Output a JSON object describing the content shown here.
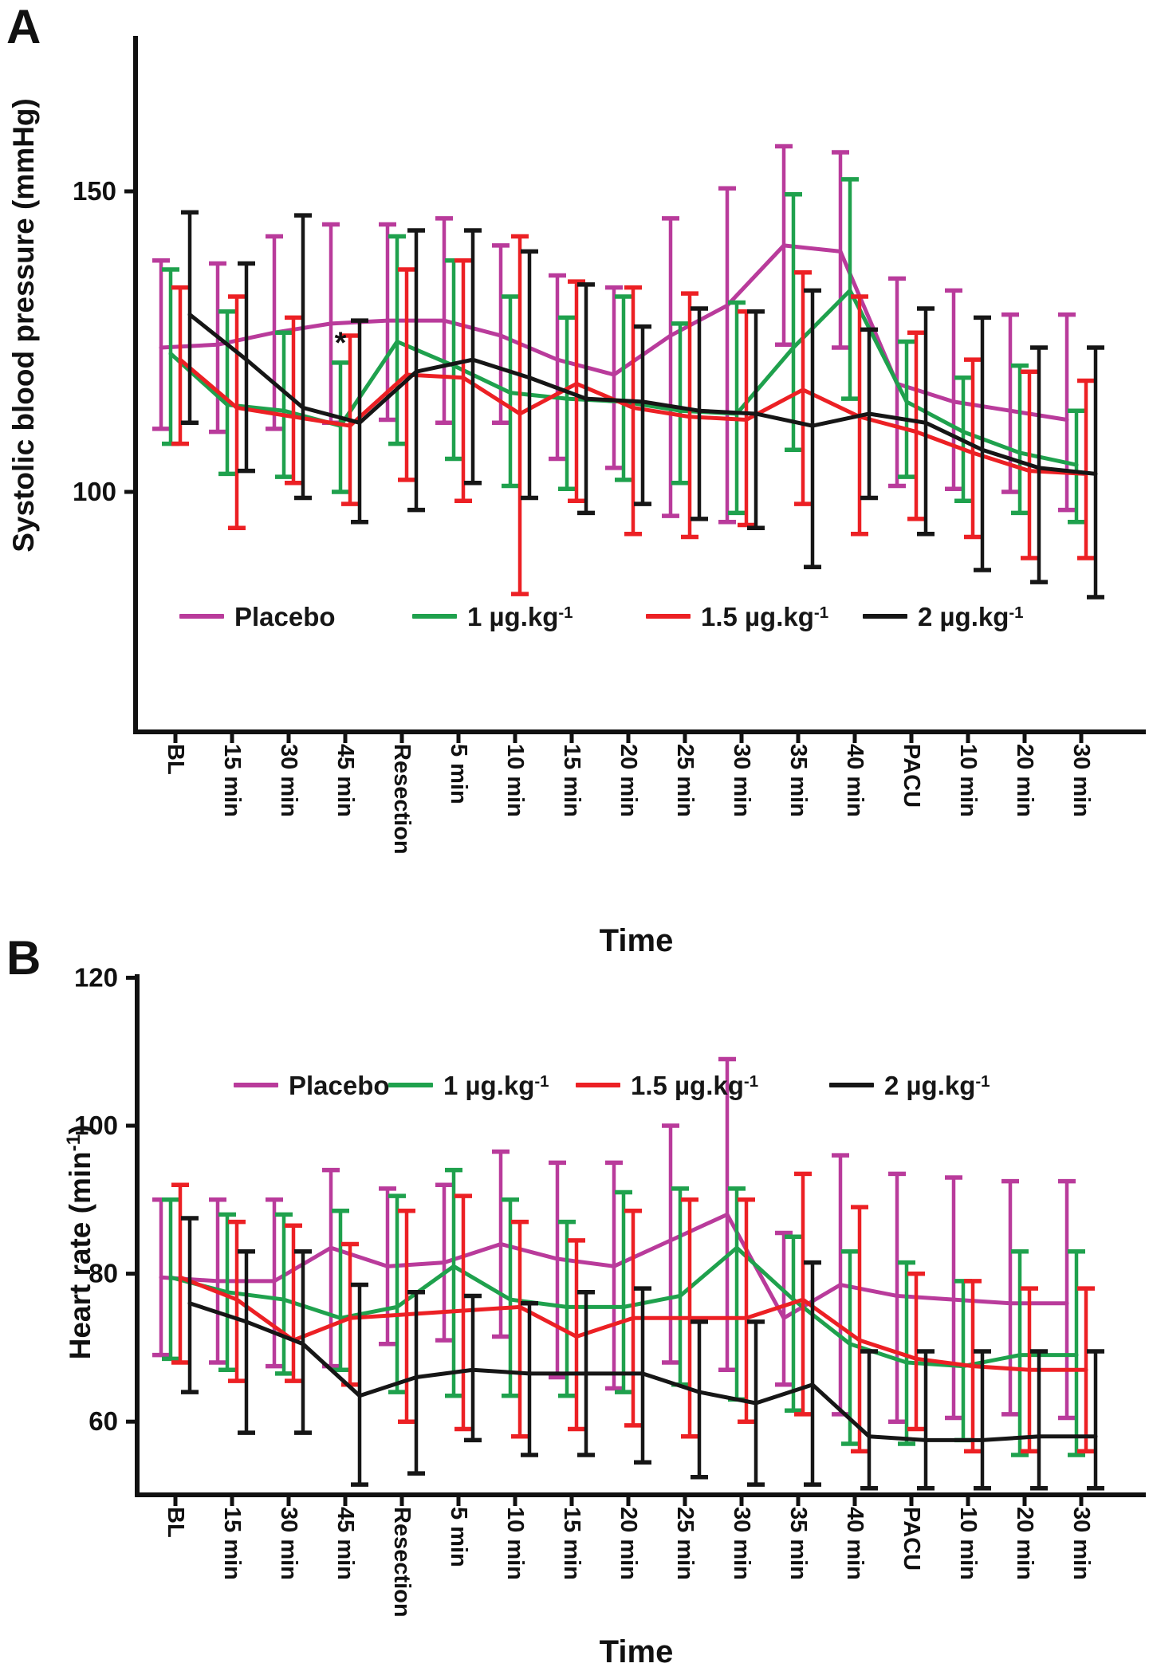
{
  "figure": {
    "panel_a_letter": "A",
    "panel_b_letter": "B",
    "background": "#ffffff",
    "text_color": "#111111",
    "axis_color": "#111111"
  },
  "legend_a": {
    "items": [
      {
        "base": "Placebo",
        "sup": "",
        "color": "#B93B9B"
      },
      {
        "base": "1 µg.kg",
        "sup": "-1",
        "color": "#1FA14D"
      },
      {
        "base": "1.5 µg.kg",
        "sup": "-1",
        "color": "#EC2024"
      },
      {
        "base": "2 µg.kg",
        "sup": "-1",
        "color": "#161616"
      }
    ]
  },
  "legend_b": {
    "items": [
      {
        "base": "Placebo",
        "sup": "",
        "color": "#B93B9B"
      },
      {
        "base": "1 µg.kg",
        "sup": "-1",
        "color": "#1FA14D"
      },
      {
        "base": "1.5 µg.kg",
        "sup": "-1",
        "color": "#EC2024"
      },
      {
        "base": "2 µg.kg",
        "sup": "-1",
        "color": "#161616"
      }
    ]
  },
  "chart_data": [
    {
      "id": "A",
      "type": "line",
      "ylabel": "Systolic  blood pressure (mmHg)",
      "xlabel": "Time",
      "categories": [
        "BL",
        "15 min",
        "30 min",
        "45 min",
        "Resection",
        "5 min",
        "10 min",
        "15 min",
        "20 min",
        "25 min",
        "30 min",
        "35 min",
        "40 min",
        "PACU",
        "10 min",
        "20 min",
        "30 min"
      ],
      "yticks": [
        150,
        100
      ],
      "ylim": [
        75,
        178
      ],
      "grid": false,
      "legend_position": "inside-bottom-left",
      "series": [
        {
          "name": "Placebo",
          "color": "#B93B9B",
          "values": [
            124,
            124.5,
            126.5,
            128,
            128.5,
            128.5,
            126,
            122,
            119.5,
            126,
            131,
            141,
            140,
            118,
            115,
            113.5,
            112
          ],
          "upper": [
            138.5,
            138,
            142.5,
            144.5,
            144.5,
            145.5,
            141,
            136,
            134,
            145.5,
            150.5,
            157.5,
            156.5,
            135.5,
            133.5,
            129.5,
            129.5
          ],
          "lower": [
            110.5,
            110,
            110.5,
            111.5,
            112,
            111.5,
            111.5,
            105.5,
            104,
            96,
            95,
            124.5,
            124,
            101,
            100.5,
            100,
            97
          ]
        },
        {
          "name": "1 µg.kg-1",
          "color": "#1FA14D",
          "values": [
            123,
            114.5,
            113.5,
            111,
            125,
            121,
            116.5,
            115.5,
            115,
            113.5,
            113,
            124,
            133.5,
            115,
            110,
            106.5,
            104.5
          ],
          "upper": [
            137,
            130,
            126.5,
            121.5,
            142.5,
            138.5,
            132.5,
            129,
            132.5,
            128,
            131.5,
            149.5,
            152,
            125,
            119,
            121,
            113.5
          ],
          "lower": [
            108,
            103,
            102.5,
            100,
            108,
            105.5,
            101,
            100.5,
            102,
            101.5,
            96.5,
            107,
            115.5,
            102.5,
            98.5,
            96.5,
            95
          ]
        },
        {
          "name": "1.5 µg.kg-1",
          "color": "#EC2024",
          "values": [
            122,
            114,
            112.5,
            111,
            119.5,
            119,
            113,
            118,
            114,
            112.5,
            112,
            117,
            112.5,
            110,
            106.5,
            103.5,
            103
          ],
          "upper": [
            134,
            132.5,
            129,
            126,
            137,
            138.5,
            142.5,
            135,
            134,
            133,
            130,
            136.5,
            132.5,
            126.5,
            122,
            120,
            118.5
          ],
          "lower": [
            108,
            94,
            101.5,
            98,
            102,
            98.5,
            83,
            98.5,
            93,
            92.5,
            94.5,
            98,
            93,
            95.5,
            92.5,
            89,
            89
          ]
        },
        {
          "name": "2 µg.kg-1",
          "color": "#161616",
          "values": [
            129.5,
            122,
            114,
            111.5,
            120,
            122,
            119,
            115.5,
            115,
            113.5,
            113,
            111,
            113,
            111.5,
            107,
            104,
            103
          ],
          "upper": [
            146.5,
            138,
            146,
            128.5,
            143.5,
            143.5,
            140,
            134.5,
            127.5,
            130.5,
            130,
            133.5,
            127,
            130.5,
            129,
            124,
            124
          ],
          "lower": [
            111.5,
            103.5,
            99,
            95,
            97,
            101.5,
            99,
            96.5,
            98,
            95.5,
            94,
            87.5,
            99,
            93,
            87,
            85,
            82.5
          ]
        }
      ],
      "annotations": [
        {
          "text": "*",
          "x_index": 3,
          "series": "1 µg.kg-1",
          "y": 124.5
        }
      ]
    },
    {
      "id": "B",
      "type": "line",
      "ylabel": "Heart rate (min-1)",
      "ylabel_base": "Heart rate (min",
      "ylabel_sup": "-1",
      "ylabel_close": ")",
      "xlabel": "Time",
      "categories": [
        "BL",
        "15 min",
        "30 min",
        "45 min",
        "Resection",
        "5 min",
        "10 min",
        "15 min",
        "20 min",
        "25 min",
        "30 min",
        "35 min",
        "40 min",
        "PACU",
        "10 min",
        "20 min",
        "30 min"
      ],
      "yticks": [
        120,
        100,
        80,
        60
      ],
      "ylim": [
        50,
        120
      ],
      "grid": false,
      "legend_position": "inside-top-left",
      "series": [
        {
          "name": "Placebo",
          "color": "#B93B9B",
          "values": [
            79.5,
            79,
            79,
            83.5,
            81,
            81.5,
            84,
            82,
            81,
            84.5,
            88,
            74,
            78.5,
            77,
            76.5,
            76,
            76
          ],
          "upper": [
            90,
            90,
            90,
            94,
            91.5,
            92,
            96.5,
            95,
            95,
            100,
            109,
            85.5,
            96,
            93.5,
            93,
            92.5,
            92.5
          ],
          "lower": [
            69,
            68,
            67.5,
            67.5,
            70.5,
            71,
            71.5,
            66,
            64.5,
            68,
            67,
            65,
            61,
            60,
            60.5,
            61,
            60.5
          ]
        },
        {
          "name": "1 µg.kg-1",
          "color": "#1FA14D",
          "values": [
            79.5,
            77.5,
            76.5,
            74,
            75.5,
            81,
            76.5,
            75.5,
            75.5,
            77,
            83.5,
            76.5,
            70.5,
            68,
            67.5,
            69,
            69
          ],
          "upper": [
            90,
            88,
            88,
            88.5,
            90.5,
            94,
            90,
            87,
            91,
            91.5,
            91.5,
            85,
            83,
            81.5,
            79,
            83,
            83
          ],
          "lower": [
            68.5,
            67,
            66.5,
            67,
            64,
            63.5,
            63.5,
            63.5,
            64,
            65,
            63,
            61.5,
            57,
            57,
            57.5,
            55.5,
            55.5
          ]
        },
        {
          "name": "1.5 µg.kg-1",
          "color": "#EC2024",
          "values": [
            79.5,
            76.5,
            71,
            74,
            74.5,
            75,
            75.5,
            71.5,
            74,
            74,
            74,
            76.5,
            71,
            68.5,
            67.5,
            67,
            67
          ],
          "upper": [
            92,
            87,
            86.5,
            84,
            88.5,
            90.5,
            87,
            84.5,
            88.5,
            90,
            90,
            93.5,
            89,
            80,
            79,
            78,
            78
          ],
          "lower": [
            68,
            65.5,
            65.5,
            65,
            60,
            59,
            58,
            59,
            59.5,
            58,
            60,
            61,
            56,
            59,
            56,
            56,
            56
          ]
        },
        {
          "name": "2 µg.kg-1",
          "color": "#161616",
          "values": [
            76,
            73.5,
            70.5,
            63.5,
            66,
            67,
            66.5,
            66.5,
            66.5,
            64,
            62.5,
            65,
            58,
            57.5,
            57.5,
            58,
            58
          ],
          "upper": [
            87.5,
            83,
            83,
            78.5,
            77.5,
            77,
            76,
            77.5,
            78,
            73.5,
            73.5,
            81.5,
            69.5,
            69.5,
            69.5,
            69.5,
            69.5
          ],
          "lower": [
            64,
            58.5,
            58.5,
            51.5,
            53,
            57.5,
            55.5,
            55.5,
            54.5,
            52.5,
            51.5,
            51.5,
            51,
            51,
            51,
            51,
            51
          ]
        }
      ],
      "annotations": []
    }
  ]
}
